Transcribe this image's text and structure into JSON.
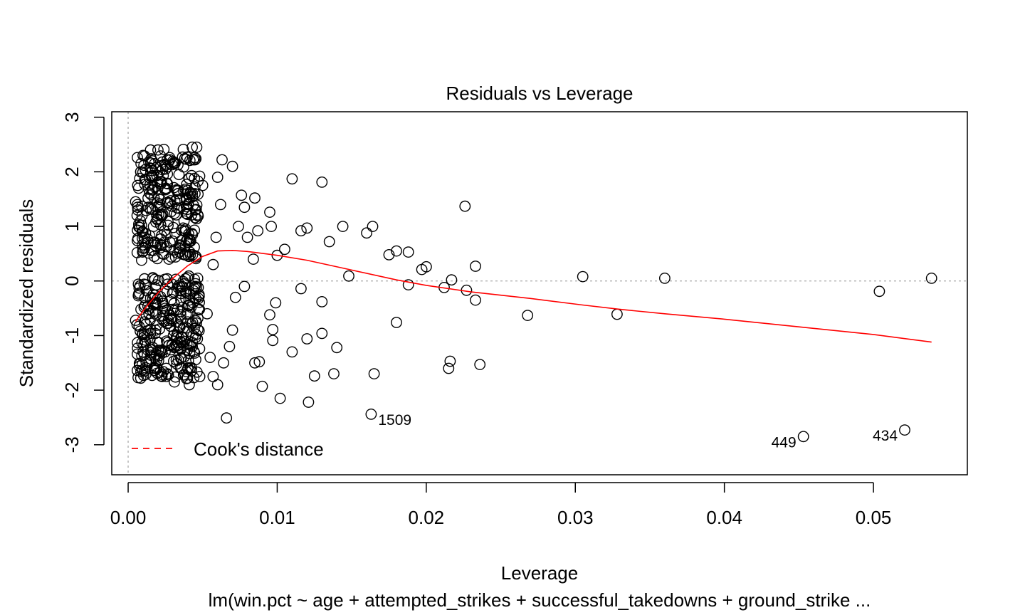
{
  "chart_data": {
    "type": "scatter",
    "title": "Residuals vs Leverage",
    "xlabel": "Leverage",
    "ylabel": "Standardized residuals",
    "subtitle": "lm(win.pct ~ age + attempted_strikes + successful_takedowns + ground_strike ...",
    "xlim": [
      -0.0011,
      0.0563
    ],
    "ylim": [
      -3.55,
      3.1
    ],
    "x_ticks": [
      0.0,
      0.01,
      0.02,
      0.03,
      0.04,
      0.05
    ],
    "x_tick_labels": [
      "0.00",
      "0.01",
      "0.02",
      "0.03",
      "0.04",
      "0.05"
    ],
    "y_ticks": [
      -3,
      -2,
      -1,
      0,
      1,
      2,
      3
    ],
    "y_tick_labels": [
      "-3",
      "-2",
      "-1",
      "0",
      "1",
      "2",
      "3"
    ],
    "reference_lines": {
      "x": 0,
      "y": 0,
      "style": "dotted",
      "color": "#aaaaaa"
    },
    "cluster_note": "dense cluster of several hundred points at leverage 0.0005-0.005",
    "points": [
      [
        0.011,
        1.87
      ],
      [
        0.013,
        1.81
      ],
      [
        0.0226,
        1.37
      ],
      [
        0.0164,
        1.0
      ],
      [
        0.0144,
        1.0
      ],
      [
        0.012,
        0.97
      ],
      [
        0.0116,
        0.92
      ],
      [
        0.016,
        0.88
      ],
      [
        0.0135,
        0.72
      ],
      [
        0.0105,
        0.58
      ],
      [
        0.018,
        0.55
      ],
      [
        0.0188,
        0.53
      ],
      [
        0.0175,
        0.48
      ],
      [
        0.02,
        0.26
      ],
      [
        0.0197,
        0.21
      ],
      [
        0.0233,
        0.27
      ],
      [
        0.0148,
        0.09
      ],
      [
        0.0305,
        0.08
      ],
      [
        0.036,
        0.05
      ],
      [
        0.0539,
        0.05
      ],
      [
        0.0217,
        0.02
      ],
      [
        0.0188,
        -0.07
      ],
      [
        0.0212,
        -0.12
      ],
      [
        0.0227,
        -0.17
      ],
      [
        0.0116,
        -0.14
      ],
      [
        0.013,
        -0.38
      ],
      [
        0.0233,
        -0.35
      ],
      [
        0.0268,
        -0.63
      ],
      [
        0.0328,
        -0.61
      ],
      [
        0.0504,
        -0.19
      ],
      [
        0.018,
        -0.76
      ],
      [
        0.013,
        -0.96
      ],
      [
        0.012,
        -1.06
      ],
      [
        0.014,
        -1.22
      ],
      [
        0.011,
        -1.3
      ],
      [
        0.0216,
        -1.47
      ],
      [
        0.0236,
        -1.53
      ],
      [
        0.0215,
        -1.6
      ],
      [
        0.0165,
        -1.7
      ],
      [
        0.0138,
        -1.7
      ],
      [
        0.0125,
        -1.74
      ],
      [
        0.0102,
        -2.15
      ],
      [
        0.0121,
        -2.22
      ],
      [
        0.0066,
        -2.51
      ],
      [
        0.009,
        -1.93
      ],
      [
        0.0099,
        -0.4
      ],
      [
        0.0095,
        -0.62
      ],
      [
        0.0097,
        -1.09
      ],
      [
        0.0097,
        -0.89
      ],
      [
        0.0085,
        -1.5
      ],
      [
        0.0088,
        -1.48
      ],
      [
        0.0095,
        1.26
      ],
      [
        0.01,
        0.47
      ],
      [
        0.0096,
        1.0
      ],
      [
        0.0087,
        0.92
      ],
      [
        0.0085,
        1.52
      ],
      [
        0.0078,
        1.35
      ],
      [
        0.0076,
        1.57
      ],
      [
        0.007,
        2.1
      ],
      [
        0.0063,
        2.22
      ],
      [
        0.006,
        1.9
      ],
      [
        0.0074,
        1.0
      ],
      [
        0.008,
        0.8
      ],
      [
        0.0084,
        0.4
      ],
      [
        0.0078,
        -0.1
      ],
      [
        0.0072,
        -0.3
      ],
      [
        0.007,
        -0.9
      ],
      [
        0.0068,
        -1.2
      ],
      [
        0.0064,
        -1.5
      ],
      [
        0.006,
        -1.9
      ],
      [
        0.0057,
        -1.75
      ],
      [
        0.0055,
        -1.4
      ],
      [
        0.0053,
        -0.6
      ],
      [
        0.0057,
        0.3
      ],
      [
        0.0059,
        0.8
      ],
      [
        0.0062,
        1.4
      ],
      [
        0.005,
        1.75
      ],
      [
        0.0046,
        2.45
      ],
      [
        0.0043,
        2.45
      ],
      [
        0.0037,
        2.41
      ],
      [
        0.0024,
        2.41
      ],
      [
        0.002,
        2.4
      ],
      [
        0.0015,
        2.4
      ],
      [
        0.001,
        2.3
      ],
      [
        0.0007,
        1.7
      ],
      [
        0.0005,
        1.45
      ],
      [
        0.0006,
        1.2
      ],
      [
        0.0009,
        0.38
      ],
      [
        0.001,
        0.55
      ],
      [
        0.0006,
        -0.8
      ],
      [
        0.0005,
        -0.72
      ],
      [
        0.001,
        -1.3
      ],
      [
        0.0018,
        -1.4
      ],
      [
        0.0027,
        -1.72
      ],
      [
        0.0031,
        -1.85
      ],
      [
        0.0041,
        -1.9
      ],
      [
        0.0048,
        -1.75
      ],
      [
        0.0036,
        -1.6
      ],
      [
        0.0043,
        -1.2
      ],
      [
        0.004,
        -0.6
      ]
    ],
    "labeled_points": [
      {
        "x": 0.0163,
        "y": -2.44,
        "label": "1509",
        "side": "right"
      },
      {
        "x": 0.0453,
        "y": -2.85,
        "label": "449",
        "side": "left"
      },
      {
        "x": 0.0521,
        "y": -2.73,
        "label": "434",
        "side": "left"
      }
    ],
    "smoother": {
      "color": "#ff0000",
      "x": [
        0.0005,
        0.001,
        0.0015,
        0.002,
        0.0025,
        0.003,
        0.004,
        0.005,
        0.006,
        0.007,
        0.008,
        0.01,
        0.012,
        0.015,
        0.018,
        0.02,
        0.023,
        0.027,
        0.0305,
        0.033,
        0.036,
        0.04,
        0.045,
        0.05,
        0.0539
      ],
      "y": [
        -0.74,
        -0.55,
        -0.38,
        -0.22,
        -0.08,
        0.05,
        0.28,
        0.45,
        0.55,
        0.56,
        0.54,
        0.47,
        0.38,
        0.2,
        0.02,
        -0.08,
        -0.2,
        -0.32,
        -0.44,
        -0.52,
        -0.6,
        -0.7,
        -0.84,
        -0.98,
        -1.12
      ]
    },
    "legend": {
      "position": "bottom-left",
      "entries": [
        {
          "label": "Cook's distance",
          "color": "#ff0000",
          "style": "dashed"
        }
      ]
    }
  }
}
